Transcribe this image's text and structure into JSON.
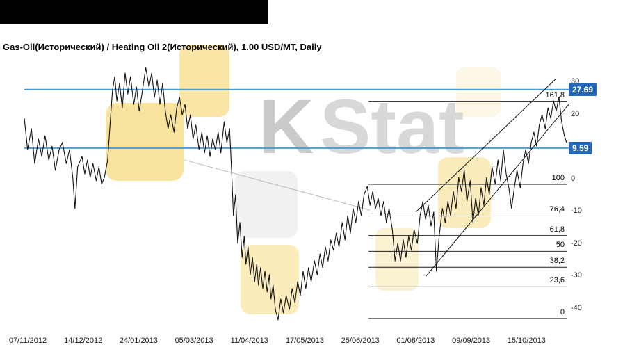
{
  "header": {
    "title": "Gas-Oil(Исторический) / Heating Oil 2(Исторический), 1.00 USD/MT, Daily"
  },
  "watermark": {
    "letter": "K",
    "text": "Stat"
  },
  "colors": {
    "topbar": "#000000",
    "level_line": "#4e9ad1",
    "badge": "#2467b8",
    "price_line": "#111111",
    "fib_line": "#222222",
    "trend_line": "#111111",
    "guide_line": "#b9b9b9",
    "watermark_yellow": "#f2c83c"
  },
  "chart_data": {
    "type": "line",
    "title": "Gas-Oil(Исторический) / Heating Oil 2(Исторический), 1.00 USD/MT, Daily",
    "xlabel": "",
    "ylabel": "",
    "grid": false,
    "legend": false,
    "ylim": [
      -45,
      36
    ],
    "x_tick_labels": [
      "07/11/2012",
      "14/12/2012",
      "24/01/2013",
      "05/03/2013",
      "11/04/2013",
      "17/05/2013",
      "25/06/2013",
      "01/08/2013",
      "09/09/2013",
      "15/10/2013"
    ],
    "y_ticks": [
      {
        "value": 30,
        "label": "30"
      },
      {
        "value": 20,
        "label": "20"
      },
      {
        "value": 0,
        "label": "0"
      },
      {
        "value": -10,
        "label": "-10"
      },
      {
        "value": -20,
        "label": "-20"
      },
      {
        "value": -30,
        "label": "-30"
      },
      {
        "value": -40,
        "label": "-40"
      }
    ],
    "level_lines": [
      {
        "label": "27.69",
        "value": 27.69
      },
      {
        "label": "9.59",
        "value": 9.59
      }
    ],
    "fibonacci": {
      "zero_value": -43.1,
      "hundred_value": -1.6,
      "levels": [
        {
          "level": 161.8,
          "label": "161,8"
        },
        {
          "level": 100,
          "label": "100"
        },
        {
          "level": 76.4,
          "label": "76,4"
        },
        {
          "level": 61.8,
          "label": "61,8"
        },
        {
          "level": 50,
          "label": "50"
        },
        {
          "level": 38.2,
          "label": "38,2"
        },
        {
          "level": 23.6,
          "label": "23,6"
        },
        {
          "level": 0,
          "label": "0"
        }
      ]
    },
    "trendlines": [
      {
        "x1": 0.719,
        "v1": -10.2,
        "x2": 0.977,
        "v2": 31.1
      },
      {
        "x1": 0.737,
        "v1": -30.2,
        "x2": 1.0,
        "v2": 23.1
      }
    ],
    "guide_line": {
      "x1": 0.294,
      "v1": 5.9,
      "x2": 0.635,
      "v2": -9.6
    },
    "series": [
      {
        "name": "price",
        "points": [
          [
            0.0,
            18.8
          ],
          [
            0.006,
            9.1
          ],
          [
            0.013,
            15.6
          ],
          [
            0.019,
            4.8
          ],
          [
            0.026,
            12.4
          ],
          [
            0.032,
            7.0
          ],
          [
            0.038,
            13.4
          ],
          [
            0.045,
            5.9
          ],
          [
            0.051,
            10.2
          ],
          [
            0.057,
            2.7
          ],
          [
            0.064,
            9.1
          ],
          [
            0.07,
            11.3
          ],
          [
            0.077,
            4.8
          ],
          [
            0.083,
            9.1
          ],
          [
            0.089,
            0.5
          ],
          [
            0.093,
            -9.1
          ],
          [
            0.098,
            3.8
          ],
          [
            0.106,
            7.0
          ],
          [
            0.111,
            1.6
          ],
          [
            0.116,
            5.9
          ],
          [
            0.121,
            0.5
          ],
          [
            0.126,
            4.8
          ],
          [
            0.132,
            -0.5
          ],
          [
            0.137,
            3.8
          ],
          [
            0.142,
            -1.6
          ],
          [
            0.147,
            0.5
          ],
          [
            0.153,
            5.9
          ],
          [
            0.157,
            15.6
          ],
          [
            0.162,
            27.4
          ],
          [
            0.166,
            31.7
          ],
          [
            0.17,
            24.2
          ],
          [
            0.175,
            29.6
          ],
          [
            0.18,
            22.0
          ],
          [
            0.185,
            32.8
          ],
          [
            0.19,
            26.3
          ],
          [
            0.195,
            31.7
          ],
          [
            0.201,
            23.1
          ],
          [
            0.206,
            28.5
          ],
          [
            0.211,
            21.0
          ],
          [
            0.217,
            27.4
          ],
          [
            0.223,
            34.5
          ],
          [
            0.229,
            28.5
          ],
          [
            0.234,
            32.8
          ],
          [
            0.239,
            25.3
          ],
          [
            0.244,
            30.6
          ],
          [
            0.249,
            23.1
          ],
          [
            0.254,
            29.6
          ],
          [
            0.259,
            21.0
          ],
          [
            0.264,
            15.6
          ],
          [
            0.269,
            19.9
          ],
          [
            0.275,
            14.5
          ],
          [
            0.28,
            22.0
          ],
          [
            0.285,
            25.3
          ],
          [
            0.29,
            19.9
          ],
          [
            0.295,
            23.1
          ],
          [
            0.3,
            15.6
          ],
          [
            0.305,
            19.9
          ],
          [
            0.31,
            12.4
          ],
          [
            0.315,
            16.7
          ],
          [
            0.321,
            9.1
          ],
          [
            0.326,
            14.5
          ],
          [
            0.331,
            8.1
          ],
          [
            0.336,
            13.4
          ],
          [
            0.341,
            7.0
          ],
          [
            0.346,
            12.4
          ],
          [
            0.351,
            9.1
          ],
          [
            0.356,
            14.5
          ],
          [
            0.361,
            8.1
          ],
          [
            0.367,
            17.7
          ],
          [
            0.372,
            11.3
          ],
          [
            0.377,
            15.6
          ],
          [
            0.381,
            1.6
          ],
          [
            0.384,
            -11.3
          ],
          [
            0.388,
            -4.8
          ],
          [
            0.392,
            -19.9
          ],
          [
            0.396,
            -13.4
          ],
          [
            0.4,
            -24.2
          ],
          [
            0.404,
            -17.7
          ],
          [
            0.407,
            -26.3
          ],
          [
            0.411,
            -21.0
          ],
          [
            0.415,
            -29.6
          ],
          [
            0.419,
            -24.2
          ],
          [
            0.423,
            -31.7
          ],
          [
            0.427,
            -26.3
          ],
          [
            0.43,
            -32.8
          ],
          [
            0.434,
            -27.4
          ],
          [
            0.438,
            -33.9
          ],
          [
            0.442,
            -28.5
          ],
          [
            0.446,
            -34.9
          ],
          [
            0.45,
            -29.6
          ],
          [
            0.453,
            -37.1
          ],
          [
            0.457,
            -32.8
          ],
          [
            0.461,
            -40.3
          ],
          [
            0.466,
            -43.5
          ],
          [
            0.471,
            -37.1
          ],
          [
            0.476,
            -41.4
          ],
          [
            0.481,
            -36.0
          ],
          [
            0.487,
            -40.3
          ],
          [
            0.492,
            -33.9
          ],
          [
            0.497,
            -38.2
          ],
          [
            0.502,
            -31.7
          ],
          [
            0.507,
            -36.0
          ],
          [
            0.512,
            -28.5
          ],
          [
            0.517,
            -33.9
          ],
          [
            0.522,
            -27.4
          ],
          [
            0.527,
            -31.7
          ],
          [
            0.533,
            -25.3
          ],
          [
            0.538,
            -29.6
          ],
          [
            0.543,
            -23.1
          ],
          [
            0.548,
            -27.4
          ],
          [
            0.553,
            -21.0
          ],
          [
            0.558,
            -25.3
          ],
          [
            0.563,
            -18.8
          ],
          [
            0.568,
            -22.0
          ],
          [
            0.573,
            -16.7
          ],
          [
            0.578,
            -21.0
          ],
          [
            0.584,
            -13.4
          ],
          [
            0.589,
            -18.8
          ],
          [
            0.594,
            -11.3
          ],
          [
            0.599,
            -16.7
          ],
          [
            0.604,
            -9.1
          ],
          [
            0.609,
            -13.4
          ],
          [
            0.614,
            -6.9
          ],
          [
            0.619,
            -11.3
          ],
          [
            0.624,
            -4.8
          ],
          [
            0.63,
            -2.3
          ],
          [
            0.635,
            -8.1
          ],
          [
            0.64,
            -3.8
          ],
          [
            0.645,
            -9.1
          ],
          [
            0.65,
            -5.9
          ],
          [
            0.655,
            -11.3
          ],
          [
            0.66,
            -6.9
          ],
          [
            0.665,
            -13.4
          ],
          [
            0.67,
            -9.1
          ],
          [
            0.676,
            -15.6
          ],
          [
            0.681,
            -25.3
          ],
          [
            0.686,
            -19.9
          ],
          [
            0.691,
            -25.3
          ],
          [
            0.696,
            -18.8
          ],
          [
            0.701,
            -24.2
          ],
          [
            0.706,
            -17.7
          ],
          [
            0.711,
            -22.0
          ],
          [
            0.716,
            -15.6
          ],
          [
            0.722,
            -19.9
          ],
          [
            0.727,
            -11.3
          ],
          [
            0.732,
            -6.9
          ],
          [
            0.737,
            -12.4
          ],
          [
            0.742,
            -8.1
          ],
          [
            0.747,
            -14.5
          ],
          [
            0.752,
            -10.2
          ],
          [
            0.757,
            -28.5
          ],
          [
            0.762,
            -17.7
          ],
          [
            0.768,
            -9.1
          ],
          [
            0.773,
            -13.4
          ],
          [
            0.778,
            -6.9
          ],
          [
            0.783,
            -11.3
          ],
          [
            0.788,
            -3.8
          ],
          [
            0.793,
            -9.1
          ],
          [
            0.798,
            0.5
          ],
          [
            0.803,
            -3.8
          ],
          [
            0.808,
            2.7
          ],
          [
            0.813,
            -6.9
          ],
          [
            0.819,
            -0.5
          ],
          [
            0.824,
            -13.4
          ],
          [
            0.829,
            -5.9
          ],
          [
            0.834,
            -11.3
          ],
          [
            0.839,
            -2.7
          ],
          [
            0.844,
            -8.1
          ],
          [
            0.849,
            0.5
          ],
          [
            0.854,
            -4.8
          ],
          [
            0.859,
            3.8
          ],
          [
            0.865,
            -1.6
          ],
          [
            0.87,
            5.9
          ],
          [
            0.875,
            -0.5
          ],
          [
            0.88,
            9.1
          ],
          [
            0.885,
            1.6
          ],
          [
            0.89,
            -2.7
          ],
          [
            0.895,
            -9.1
          ],
          [
            0.9,
            -2.7
          ],
          [
            0.905,
            2.7
          ],
          [
            0.911,
            -2.7
          ],
          [
            0.916,
            4.8
          ],
          [
            0.921,
            9.1
          ],
          [
            0.926,
            4.8
          ],
          [
            0.931,
            11.3
          ],
          [
            0.936,
            14.5
          ],
          [
            0.941,
            10.2
          ],
          [
            0.946,
            16.7
          ],
          [
            0.951,
            19.9
          ],
          [
            0.957,
            15.6
          ],
          [
            0.962,
            22.0
          ],
          [
            0.967,
            18.8
          ],
          [
            0.972,
            24.2
          ],
          [
            0.977,
            21.0
          ],
          [
            0.982,
            25.3
          ],
          [
            0.987,
            17.7
          ],
          [
            0.992,
            13.4
          ],
          [
            0.996,
            11.3
          ]
        ]
      }
    ]
  }
}
